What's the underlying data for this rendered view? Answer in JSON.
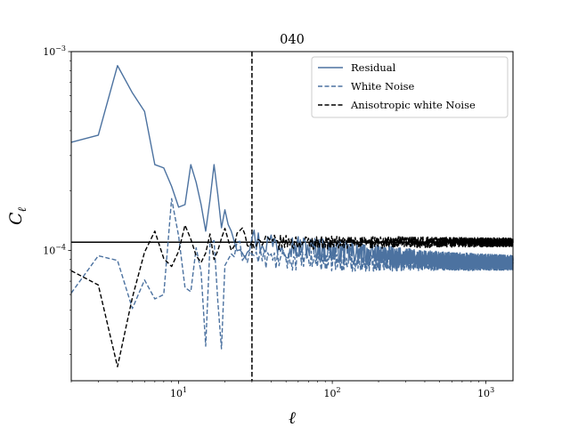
{
  "chart_data": {
    "type": "line",
    "title": "040",
    "xlabel": "ℓ",
    "ylabel": "C",
    "ylabel_sub": "ℓ",
    "x_scale": "log",
    "y_scale": "log",
    "xlim": [
      2,
      1500
    ],
    "ylim": [
      2.21e-05,
      0.001
    ],
    "x_ticks": [
      {
        "value": 10,
        "mantissa": "10",
        "exp": "1"
      },
      {
        "value": 100,
        "mantissa": "10",
        "exp": "2"
      },
      {
        "value": 1000,
        "mantissa": "10",
        "exp": "3"
      }
    ],
    "y_ticks": [
      {
        "value": 0.0001,
        "mantissa": "10",
        "exp": "−4"
      },
      {
        "value": 0.001,
        "mantissa": "10",
        "exp": "−3"
      }
    ],
    "grid": false,
    "legend_position": "top-right",
    "reference_lines": {
      "horizontal_y": 0.00011,
      "vertical_x": 30
    },
    "colors": {
      "residual": "#4c72a0",
      "white_noise": "#4c72a0",
      "anisotropic": "#000000"
    },
    "series": [
      {
        "name": "Residual",
        "style": "solid",
        "color": "#4c72a0",
        "points": [
          [
            2,
            0.00035
          ],
          [
            3,
            0.00038
          ],
          [
            4,
            0.00085
          ],
          [
            5,
            0.00062
          ],
          [
            6,
            0.0005
          ],
          [
            7,
            0.00027
          ],
          [
            8,
            0.00026
          ],
          [
            9,
            0.00021
          ],
          [
            10,
            0.000165
          ],
          [
            11,
            0.00017
          ],
          [
            12,
            0.00027
          ],
          [
            13,
            0.00022
          ],
          [
            14,
            0.00017
          ],
          [
            15,
            0.000125
          ],
          [
            16,
            0.00018
          ],
          [
            17,
            0.00027
          ],
          [
            18,
            0.00019
          ],
          [
            19,
            0.00013
          ],
          [
            20,
            0.00016
          ],
          [
            21,
            0.000135
          ],
          [
            22,
            0.000125
          ],
          [
            24,
            0.000115
          ],
          [
            26,
            0.000105
          ],
          [
            28,
            0.00011
          ],
          [
            30,
            0.000115
          ],
          [
            35,
            0.00011
          ],
          [
            40,
            0.00011
          ],
          [
            60,
            0.000105
          ],
          [
            100,
            0.0001
          ],
          [
            200,
            9.5e-05
          ],
          [
            400,
            9e-05
          ],
          [
            800,
            8.8e-05
          ],
          [
            1500,
            8.7e-05
          ]
        ]
      },
      {
        "name": "White Noise",
        "style": "dashed",
        "color": "#4c72a0",
        "points": [
          [
            2,
            6.1e-05
          ],
          [
            3,
            9.4e-05
          ],
          [
            4,
            8.9e-05
          ],
          [
            5,
            5.1e-05
          ],
          [
            6,
            7.1e-05
          ],
          [
            7,
            5.7e-05
          ],
          [
            8,
            6e-05
          ],
          [
            9,
            0.000182
          ],
          [
            10,
            0.000118
          ],
          [
            11,
            6.5e-05
          ],
          [
            12,
            6.2e-05
          ],
          [
            13,
            0.000103
          ],
          [
            14,
            7.8e-05
          ],
          [
            15,
            3.3e-05
          ],
          [
            16,
            0.000108
          ],
          [
            17,
            0.000112
          ],
          [
            18,
            5.5e-05
          ],
          [
            19,
            3.2e-05
          ],
          [
            20,
            8.4e-05
          ],
          [
            22,
            9.6e-05
          ],
          [
            25,
            0.0001
          ],
          [
            30,
            9.5e-05
          ],
          [
            40,
            9e-05
          ],
          [
            60,
            9e-05
          ],
          [
            100,
            8.8e-05
          ],
          [
            200,
            8.7e-05
          ],
          [
            400,
            8.7e-05
          ],
          [
            800,
            8.6e-05
          ],
          [
            1500,
            8.6e-05
          ]
        ]
      },
      {
        "name": "Anisotropic white Noise",
        "style": "dashed",
        "color": "#000000",
        "points": [
          [
            2,
            7.9e-05
          ],
          [
            3,
            6.7e-05
          ],
          [
            4,
            2.6e-05
          ],
          [
            5,
            5.8e-05
          ],
          [
            6,
            9.8e-05
          ],
          [
            7,
            0.000125
          ],
          [
            8,
            9.1e-05
          ],
          [
            9,
            8.3e-05
          ],
          [
            10,
            9.9e-05
          ],
          [
            11,
            0.000134
          ],
          [
            12,
            0.000114
          ],
          [
            13,
            9.4e-05
          ],
          [
            14,
            8.7e-05
          ],
          [
            15,
            9.7e-05
          ],
          [
            16,
            0.000121
          ],
          [
            17,
            9e-05
          ],
          [
            18,
            0.0001
          ],
          [
            19,
            0.000115
          ],
          [
            20,
            0.000129
          ],
          [
            22,
            0.0001
          ],
          [
            25,
            0.000123
          ],
          [
            30,
            0.00011
          ],
          [
            40,
            0.00011
          ],
          [
            60,
            0.00011
          ],
          [
            100,
            0.00011
          ],
          [
            200,
            0.00011
          ],
          [
            400,
            0.00011
          ],
          [
            800,
            0.00011
          ],
          [
            1500,
            0.00011
          ]
        ]
      }
    ]
  }
}
